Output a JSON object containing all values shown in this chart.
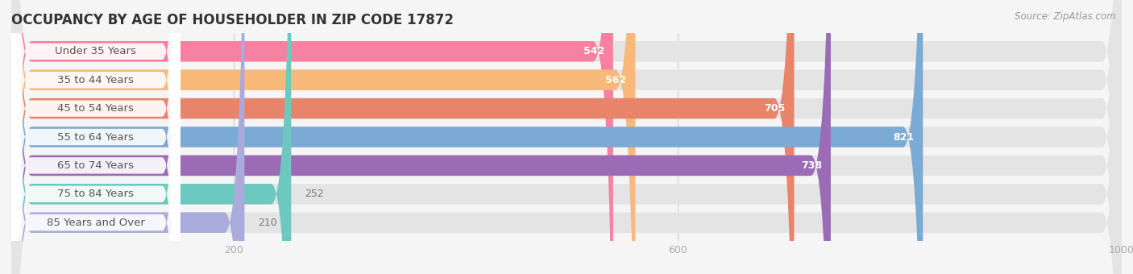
{
  "title": "OCCUPANCY BY AGE OF HOUSEHOLDER IN ZIP CODE 17872",
  "source": "Source: ZipAtlas.com",
  "categories": [
    "Under 35 Years",
    "35 to 44 Years",
    "45 to 54 Years",
    "55 to 64 Years",
    "65 to 74 Years",
    "75 to 84 Years",
    "85 Years and Over"
  ],
  "values": [
    542,
    562,
    705,
    821,
    738,
    252,
    210
  ],
  "bar_colors": [
    "#F880A0",
    "#F9B97A",
    "#E8846A",
    "#7BAAD4",
    "#9B6BB5",
    "#6DC8BF",
    "#AAAADD"
  ],
  "xlim": [
    0,
    1000
  ],
  "xticks": [
    200,
    600,
    1000
  ],
  "title_fontsize": 12,
  "label_fontsize": 9.5,
  "value_fontsize": 9,
  "background_color": "#f5f5f5",
  "bar_bg_color": "#e4e4e4",
  "white_label_bg": "#ffffff",
  "label_text_color": "#555555",
  "value_color_inside": "#ffffff",
  "value_color_outside": "#777777",
  "source_color": "#999999",
  "tick_color": "#aaaaaa",
  "grid_color": "#d0d0d0"
}
